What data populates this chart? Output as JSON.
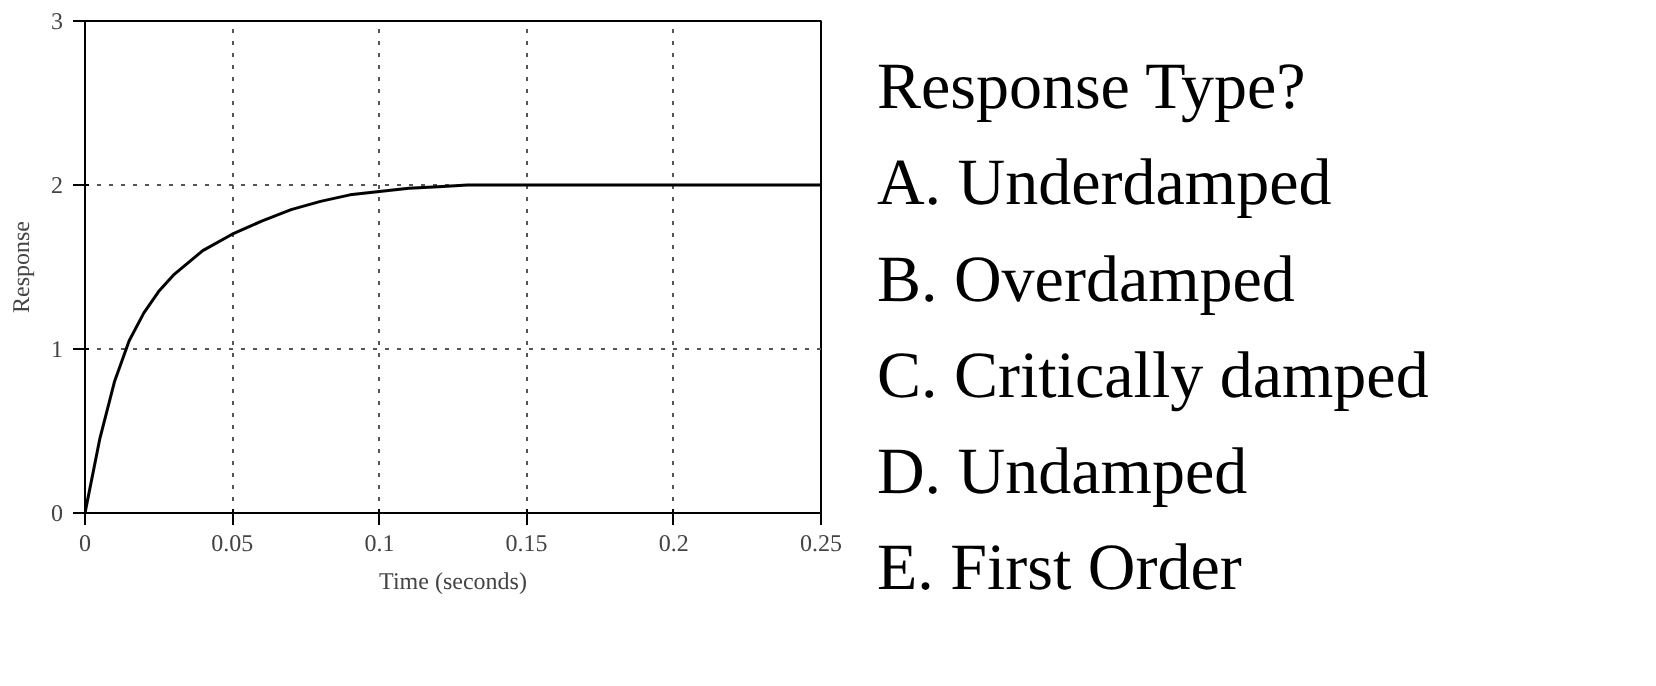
{
  "chart_data": [
    {
      "type": "line",
      "xlabel": "Time (seconds)",
      "ylabel": "Response",
      "color": "#000000",
      "x": [
        0,
        0.005,
        0.01,
        0.015,
        0.02,
        0.025,
        0.03,
        0.04,
        0.05,
        0.06,
        0.07,
        0.08,
        0.09,
        0.1,
        0.11,
        0.12,
        0.13,
        0.15,
        0.2,
        0.25
      ],
      "values": [
        0,
        0.45,
        0.8,
        1.05,
        1.22,
        1.35,
        1.45,
        1.6,
        1.7,
        1.78,
        1.85,
        1.9,
        1.94,
        1.96,
        1.98,
        1.99,
        2,
        2,
        2,
        2
      ],
      "xlim": [
        0,
        0.25
      ],
      "ylim": [
        0,
        3
      ],
      "xticks": [
        0,
        0.05,
        0.1,
        0.15,
        0.2,
        0.25
      ],
      "yticks": [
        0,
        1,
        2,
        3
      ],
      "grid": true,
      "line_style": "solid"
    },
    {
      "type": "other",
      "title": "Response Type?",
      "annotations": [
        "A.  Underdamped",
        "B.  Overdamped",
        "C.  Critically damped",
        "D.  Undamped",
        "E.  First Order"
      ]
    }
  ]
}
